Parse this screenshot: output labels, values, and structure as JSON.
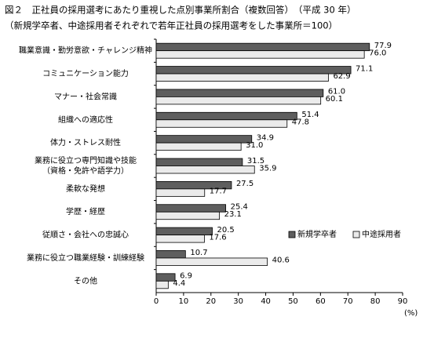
{
  "chart_data": {
    "type": "barh",
    "title": "図２　正社員の採用選考にあたり重視した点別事業所割合（複数回答）　（平成 30 年）",
    "subtitle": "（新規学卒者、中途採用者それぞれで若年正社員の採用選考をした事業所＝100）",
    "x_label": "(%)",
    "categories": [
      "職業意識・勤労意欲・チャレンジ精神",
      "コミュニケーション能力",
      "マナー・社会常識",
      "組織への適応性",
      "体力・ストレス耐性",
      "業務に役立つ専門知識や技能\n（資格・免許や語学力）",
      "柔軟な発想",
      "学歴・経歴",
      "従順さ・会社への忠誠心",
      "業務に役立つ職業経験・訓練経験",
      "その他"
    ],
    "series": [
      {
        "name": "新規学卒者",
        "color": "#5e5e5e",
        "values": [
          77.9,
          71.1,
          61.0,
          51.4,
          34.9,
          31.5,
          27.5,
          25.4,
          20.5,
          10.7,
          6.9
        ],
        "value_labels": [
          "77.9",
          "71.1",
          "61.0",
          "51.4",
          "34.9",
          "31.5",
          "27.5",
          "25.4",
          "20.5",
          "10.7",
          "6.9"
        ]
      },
      {
        "name": "中途採用者",
        "color": "#ebebeb",
        "values": [
          76.0,
          62.9,
          60.1,
          47.8,
          31.0,
          35.9,
          17.7,
          23.1,
          17.6,
          40.6,
          4.4
        ],
        "value_labels": [
          "76.0",
          "62.9",
          "60.1",
          "47.8",
          "31.0",
          "35.9",
          "17.7",
          "23.1",
          "17.6",
          "40.6",
          "4.4"
        ]
      }
    ],
    "xlim": [
      0,
      90
    ],
    "xticks": [
      0,
      10,
      20,
      30,
      40,
      50,
      60,
      70,
      80,
      90
    ],
    "grid": false,
    "legend": "lower right"
  }
}
